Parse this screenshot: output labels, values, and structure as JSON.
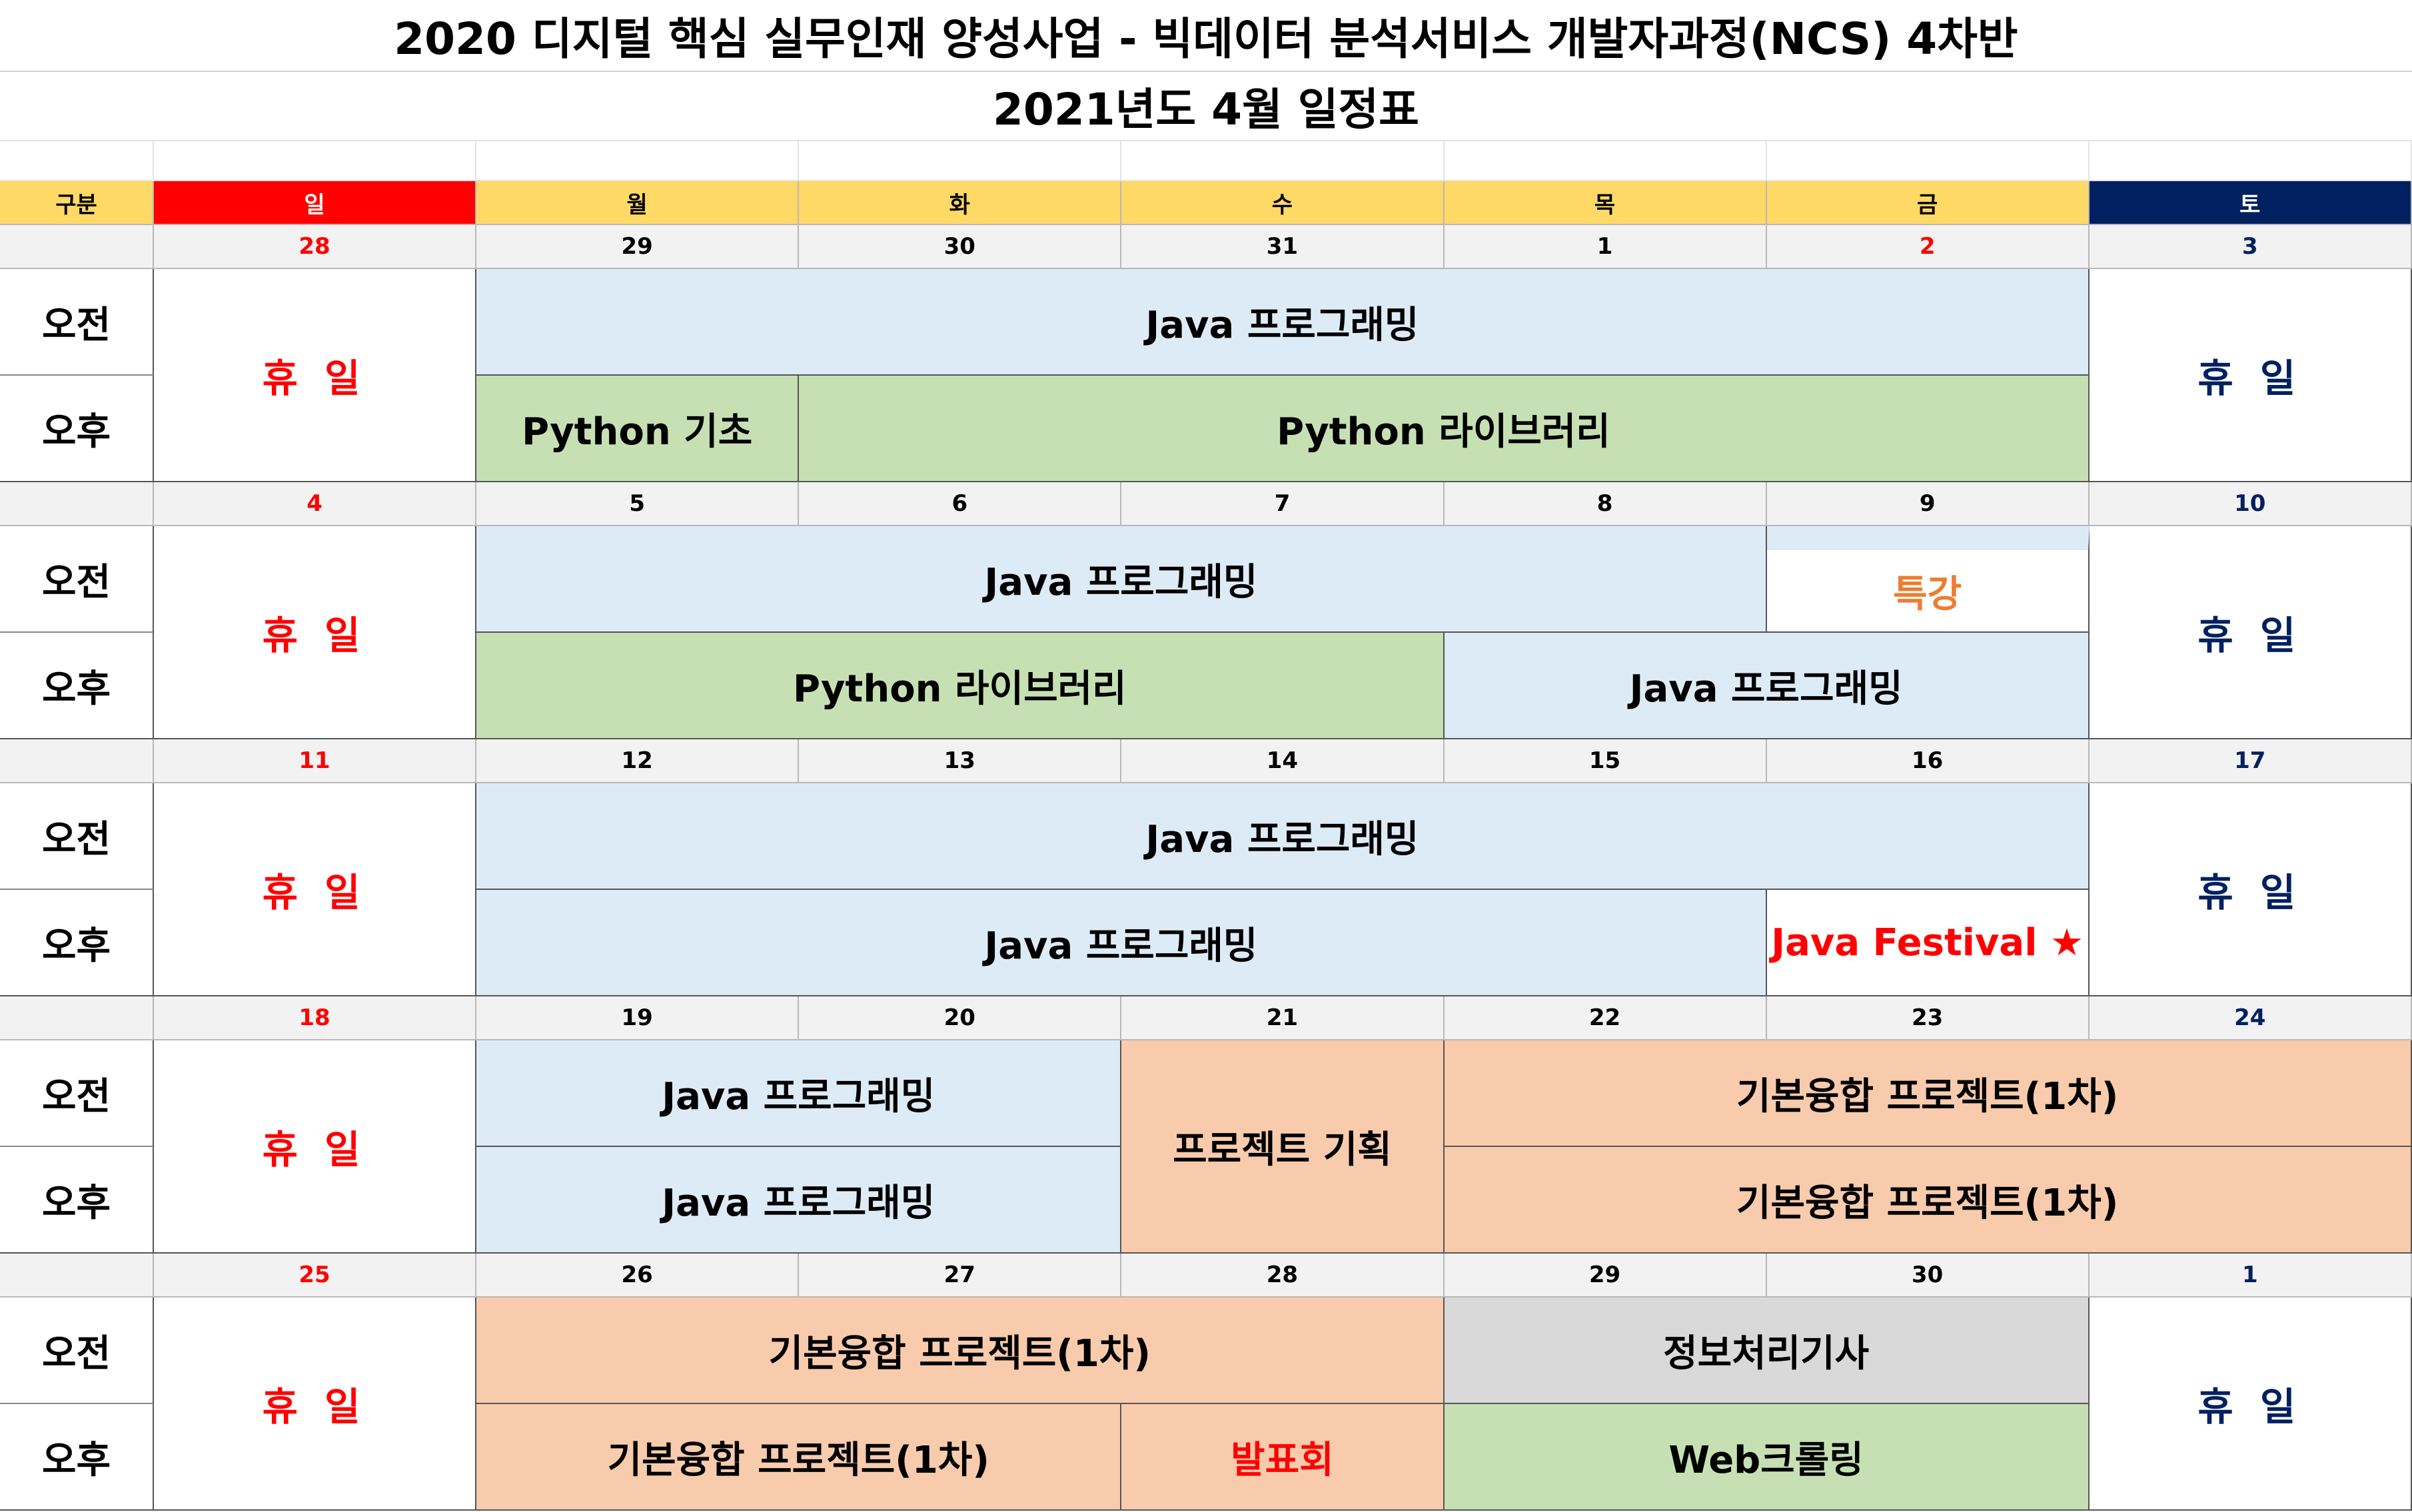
{
  "title": "2020 디지털 핵심 실무인재 양성사업 - 빅데이터 분석서비스 개발자과정(NCS) 4차반",
  "subtitle": "2021년도 4월 일정표",
  "header": {
    "label": "구분",
    "days": [
      "일",
      "월",
      "화",
      "수",
      "목",
      "금",
      "토"
    ]
  },
  "colors": {
    "sunday_header": "#ff0000",
    "saturday_header": "#002060",
    "weekday_header": "#ffd966",
    "holiday_red": "#ff0000",
    "holiday_navy": "#002060",
    "java_blue": "#ddebf7",
    "python_green": "#c6e0b4",
    "project_salmon": "#f8cbad",
    "exam_gray": "#d9d9d9",
    "special_orange": "#ed7d31"
  },
  "periods": {
    "am": "오전",
    "pm": "오후"
  },
  "holiday_label": "휴 일",
  "weeks": [
    {
      "dates": [
        "28",
        "29",
        "30",
        "31",
        "1",
        "2",
        "3"
      ],
      "am": [
        {
          "label": "Java 프로그래밍"
        }
      ],
      "pm": [
        {
          "label": "Python 기초"
        },
        {
          "label": "Python 라이브러리"
        }
      ]
    },
    {
      "dates": [
        "4",
        "5",
        "6",
        "7",
        "8",
        "9",
        "10"
      ],
      "am": [
        {
          "label": "Java 프로그래밍"
        },
        {
          "label": "특강"
        }
      ],
      "pm": [
        {
          "label": "Python 라이브러리"
        },
        {
          "label": "Java 프로그래밍"
        }
      ]
    },
    {
      "dates": [
        "11",
        "12",
        "13",
        "14",
        "15",
        "16",
        "17"
      ],
      "am": [
        {
          "label": "Java 프로그래밍"
        }
      ],
      "pm": [
        {
          "label": "Java 프로그래밍"
        },
        {
          "label": "Java Festival ★"
        }
      ]
    },
    {
      "dates": [
        "18",
        "19",
        "20",
        "21",
        "22",
        "23",
        "24"
      ],
      "am": [
        {
          "label": "Java 프로그래밍"
        },
        {
          "label": "프로젝트 기획"
        },
        {
          "label": "기본융합 프로젝트(1차)"
        }
      ],
      "pm": [
        {
          "label": "Java 프로그래밍"
        },
        {
          "label": "기본융합 프로젝트(1차)"
        }
      ]
    },
    {
      "dates": [
        "25",
        "26",
        "27",
        "28",
        "29",
        "30",
        "1"
      ],
      "am": [
        {
          "label": "기본융합 프로젝트(1차)"
        },
        {
          "label": "정보처리기사"
        }
      ],
      "pm": [
        {
          "label": "기본융합 프로젝트(1차)"
        },
        {
          "label": "발표회"
        },
        {
          "label": "Web크롤링"
        }
      ]
    }
  ]
}
